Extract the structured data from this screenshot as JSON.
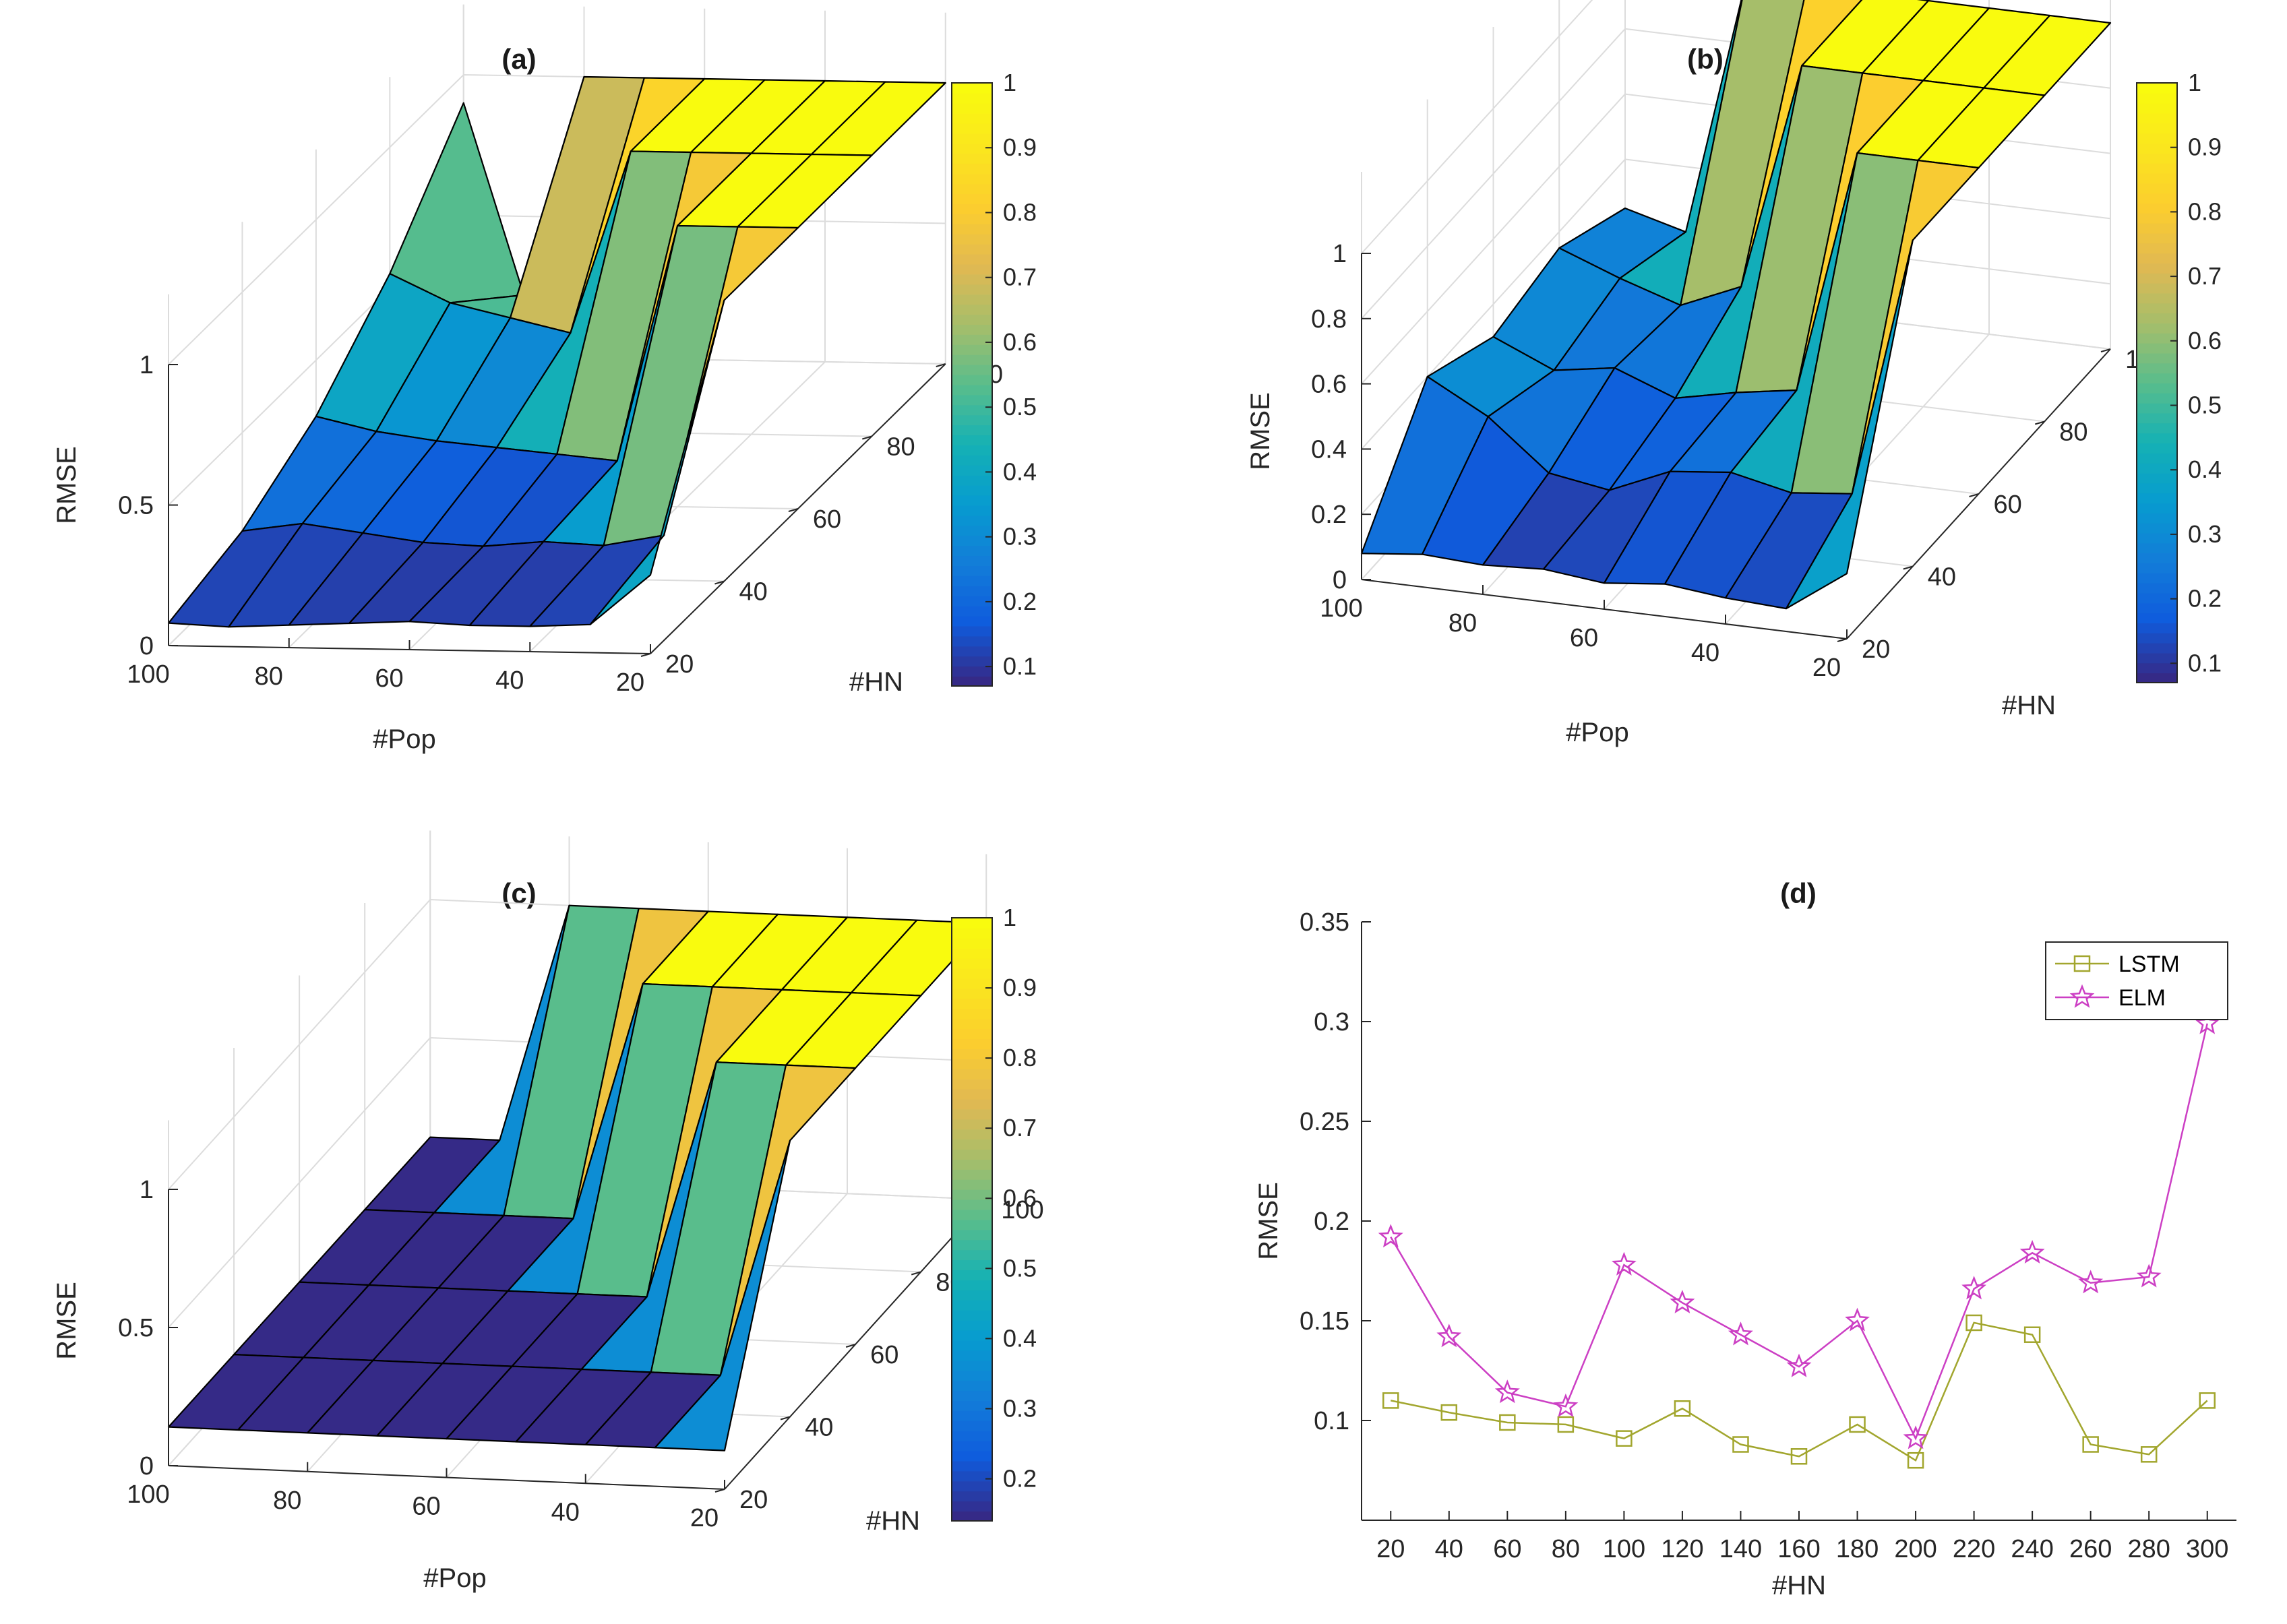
{
  "chart_data": [
    {
      "panel": "a",
      "type": "surface",
      "title": "(a)",
      "xlabel": "#Pop",
      "ylabel": "#HN",
      "zlabel": "RMSE",
      "x_ticks": [
        "100",
        "80",
        "60",
        "40",
        "20"
      ],
      "y_ticks": [
        "20",
        "40",
        "60",
        "80",
        "100"
      ],
      "z_ticks": [
        "0",
        "0.5",
        "1"
      ],
      "colorbar": {
        "min": 0.07,
        "max": 1,
        "ticks": [
          "0.1",
          "0.2",
          "0.3",
          "0.4",
          "0.5",
          "0.6",
          "0.7",
          "0.8",
          "0.9",
          "1"
        ]
      },
      "pop": [
        100,
        90,
        80,
        70,
        60,
        50,
        40,
        30,
        20
      ],
      "hn": [
        20,
        40,
        60,
        80,
        100
      ],
      "rmse": [
        [
          0.08,
          0.07,
          0.08,
          0.09,
          0.1,
          0.09,
          0.09,
          0.1,
          0.28
        ],
        [
          0.15,
          0.18,
          0.15,
          0.12,
          0.11,
          0.13,
          0.12,
          0.16,
          1
        ],
        [
          0.3,
          0.25,
          0.22,
          0.2,
          0.18,
          0.16,
          1,
          1,
          1
        ],
        [
          0.55,
          0.45,
          0.4,
          0.35,
          1,
          1,
          1,
          1,
          1
        ],
        [
          0.9,
          0.22,
          1,
          1,
          1,
          1,
          1,
          1,
          1
        ]
      ]
    },
    {
      "panel": "b",
      "type": "surface",
      "title": "(b)",
      "xlabel": "#Pop",
      "ylabel": "#HN",
      "zlabel": "RMSE",
      "x_ticks": [
        "100",
        "80",
        "60",
        "40",
        "20"
      ],
      "y_ticks": [
        "20",
        "40",
        "60",
        "80",
        "100"
      ],
      "z_ticks": [
        "0",
        "0.2",
        "0.4",
        "0.6",
        "0.8",
        "1"
      ],
      "colorbar": {
        "min": 0.07,
        "max": 1,
        "ticks": [
          "0.1",
          "0.2",
          "0.3",
          "0.4",
          "0.5",
          "0.6",
          "0.7",
          "0.8",
          "0.9",
          "1"
        ]
      },
      "pop": [
        100,
        90,
        80,
        70,
        60,
        50,
        40,
        30,
        20
      ],
      "hn": [
        20,
        40,
        60,
        80,
        100
      ],
      "rmse": [
        [
          0.08,
          0.1,
          0.09,
          0.1,
          0.08,
          0.1,
          0.08,
          0.07,
          0.2
        ],
        [
          0.4,
          0.3,
          0.15,
          0.12,
          0.2,
          0.22,
          0.18,
          0.2,
          1
        ],
        [
          0.3,
          0.22,
          0.25,
          0.18,
          0.22,
          0.25,
          1,
          1,
          1
        ],
        [
          0.35,
          0.28,
          0.22,
          0.3,
          1,
          1,
          1,
          1,
          1
        ],
        [
          0.25,
          0.2,
          1,
          1,
          1,
          1,
          1,
          1,
          1
        ]
      ]
    },
    {
      "panel": "c",
      "type": "surface",
      "title": "(c)",
      "xlabel": "#Pop",
      "ylabel": "#HN",
      "zlabel": "RMSE",
      "x_ticks": [
        "100",
        "80",
        "60",
        "40",
        "20"
      ],
      "y_ticks": [
        "20",
        "40",
        "60",
        "80",
        "100"
      ],
      "z_ticks": [
        "0",
        "0.5",
        "1"
      ],
      "colorbar": {
        "min": 0.14,
        "max": 1,
        "ticks": [
          "0.2",
          "0.3",
          "0.4",
          "0.5",
          "0.6",
          "0.7",
          "0.8",
          "0.9",
          "1"
        ]
      },
      "pop": [
        100,
        90,
        80,
        70,
        60,
        50,
        40,
        30,
        20
      ],
      "hn": [
        20,
        40,
        60,
        80,
        100
      ],
      "rmse": [
        [
          0.14,
          0.14,
          0.14,
          0.14,
          0.14,
          0.14,
          0.14,
          0.14,
          0.14
        ],
        [
          0.14,
          0.14,
          0.14,
          0.14,
          0.14,
          0.14,
          0.14,
          0.14,
          1
        ],
        [
          0.14,
          0.14,
          0.14,
          0.14,
          0.14,
          0.14,
          1,
          1,
          1
        ],
        [
          0.14,
          0.14,
          0.14,
          0.14,
          1,
          1,
          1,
          1,
          1
        ],
        [
          0.14,
          0.14,
          1,
          1,
          1,
          1,
          1,
          1,
          1
        ]
      ]
    },
    {
      "panel": "d",
      "type": "line",
      "title": "(d)",
      "xlabel": "#HN",
      "ylabel": "RMSE",
      "x": [
        20,
        40,
        60,
        80,
        100,
        120,
        140,
        160,
        180,
        200,
        220,
        240,
        260,
        280,
        300
      ],
      "x_ticks": [
        "20",
        "40",
        "60",
        "80",
        "100",
        "120",
        "140",
        "160",
        "180",
        "200",
        "220",
        "240",
        "260",
        "280",
        "300"
      ],
      "y_ticks": [
        "0.1",
        "0.15",
        "0.2",
        "0.25",
        "0.3",
        "0.35"
      ],
      "ylim": [
        0.05,
        0.35
      ],
      "xlim": [
        10,
        310
      ],
      "legend_position": "top-right",
      "series": [
        {
          "name": "LSTM",
          "color": "#a2a62e",
          "marker": "square",
          "values": [
            0.11,
            0.104,
            0.099,
            0.098,
            0.091,
            0.106,
            0.088,
            0.082,
            0.098,
            0.08,
            0.149,
            0.143,
            0.088,
            0.083,
            0.11
          ]
        },
        {
          "name": "ELM",
          "color": "#cc3fc4",
          "marker": "star",
          "values": [
            0.192,
            0.142,
            0.114,
            0.107,
            0.178,
            0.159,
            0.143,
            0.127,
            0.15,
            0.091,
            0.166,
            0.184,
            0.169,
            0.172,
            0.299
          ]
        }
      ]
    }
  ]
}
